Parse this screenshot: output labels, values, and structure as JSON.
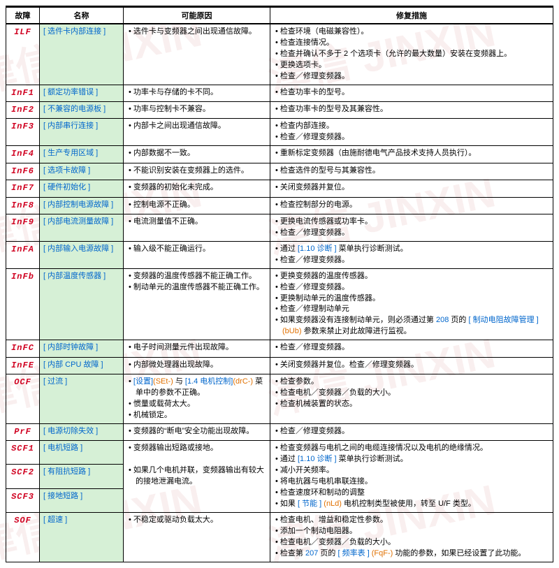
{
  "headers": {
    "code": "故障",
    "name": "名称",
    "cause": "可能原因",
    "remedy": "修复措施"
  },
  "rows": [
    {
      "code": "ILF",
      "name": "[ 选件卡内部连接 ]",
      "cause": [
        "选件卡与变频器之间出现通信故障。"
      ],
      "remedy": [
        "检查环境（电磁兼容性）。",
        "检查连接情况。",
        "检查并确认不多于 2 个选项卡（允许的最大数量）安装在变频器上。",
        "更换选项卡。",
        "检查／修理变频器。"
      ]
    },
    {
      "code": "InF1",
      "name": "[ 额定功率错误 ]",
      "cause": [
        "功率卡与存储的卡不同。"
      ],
      "remedy": [
        "检查功率卡的型号。"
      ]
    },
    {
      "code": "InF2",
      "name": "[ 不兼容的电源板 ]",
      "cause": [
        "功率与控制卡不兼容。"
      ],
      "remedy": [
        "检查功率卡的型号及其兼容性。"
      ]
    },
    {
      "code": "InF3",
      "name": "[ 内部串行连接 ]",
      "cause": [
        "内部卡之间出现通信故障。"
      ],
      "remedy": [
        "检查内部连接。",
        "检查／修理变频器。"
      ]
    },
    {
      "code": "InF4",
      "name": "[ 生产专用区域 ]",
      "cause": [
        "内部数据不一致。"
      ],
      "remedy": [
        "重新标定变频器（由施耐德电气产品技术支持人员执行）。"
      ]
    },
    {
      "code": "InF6",
      "name": "[ 选项卡故障 ]",
      "cause": [
        "不能识别安装在变频器上的选件。"
      ],
      "remedy": [
        "检查选件的型号与其兼容性。"
      ]
    },
    {
      "code": "InF7",
      "name": "[ 硬件初始化 ]",
      "cause": [
        "变频器的初始化未完成。"
      ],
      "remedy": [
        "关闭变频器并复位。"
      ]
    },
    {
      "code": "InF8",
      "name": "[ 内部控制电源故障 ]",
      "cause": [
        "控制电源不正确。"
      ],
      "remedy": [
        "检查控制部分的电源。"
      ]
    },
    {
      "code": "InF9",
      "name": "[ 内部电流测量故障 ]",
      "cause": [
        "电流测量值不正确。"
      ],
      "remedy": [
        "更换电流传感器或功率卡。",
        "检查／修理变频器。"
      ]
    },
    {
      "code": "InFA",
      "name": "[ 内部输入电源故障 ]",
      "cause": [
        "输入级不能正确运行。"
      ],
      "remedy_html": "<ul><li>通过 <span class='blue'>[1.10 诊断 ]</span> 菜单执行诊断测试。</li><li>检查／修理变频器。</li></ul>"
    },
    {
      "code": "InFb",
      "name": "[ 内部温度传感器 ]",
      "cause": [
        "变频器的温度传感器不能正确工作。",
        "制动单元的温度传感器不能正确工作。"
      ],
      "remedy_html": "<ul><li>更换变频器的温度传感器。</li><li>检查／修理变频器。</li><li>更换制动单元的温度传感器。</li><li>检查／修理制动单元</li><li>如果变频器没有连接制动单元，则必须通过第 <span class='blue'>208</span> 页的 <span class='blue'>[ 制动电阻故障管理 ]</span> <span class='orange'>(bUb)</span> 参数来禁止对此故障进行监视。</li></ul>"
    },
    {
      "code": "InFC",
      "name": "[ 内部时钟故障 ]",
      "cause": [
        "电子时间测量元件出现故障。"
      ],
      "remedy": [
        "检查／修理变频器。"
      ]
    },
    {
      "code": "InFE",
      "name": "[ 内部 CPU 故障 ]",
      "cause": [
        "内部微处理器出现故障。"
      ],
      "remedy": [
        "关闭变频器并复位。检查／修理变频器。"
      ]
    },
    {
      "code": "OCF",
      "name": "[ 过流 ]",
      "cause_html": "<ul><li><span class='blue'>[设置]</span><span class='orange'>(SEt-)</span> 与 <span class='blue'>[1.4 电机控制]</span><span class='orange'>(drC-)</span> 菜单中的参数不正确。</li><li>惯量或载荷太大。</li><li>机械锁定。</li></ul>",
      "remedy": [
        "检查参数。",
        "检查电机／变频器／负载的大小。",
        "检查机械装置的状态。"
      ]
    },
    {
      "code": "PrF",
      "name": "[ 电源切除失效 ]",
      "cause": [
        "变频器的“断电”安全功能出现故障。"
      ],
      "remedy": [
        "检查／修理变频器。"
      ]
    },
    {
      "code": "SCF1",
      "name": "[ 电机短路 ]",
      "cause_rowspan": 3,
      "remedy_rowspan": 3,
      "cause_html": "<ul><li>变频器输出短路或接地。</li></ul><br><ul><li>如果几个电机并联，变频器输出有较大的接地泄漏电流。</li></ul>",
      "remedy_html": "<ul><li>检查变频器与电机之间的电缆连接情况以及电机的绝缘情况。</li><li>通过 <span class='blue'>[1.10 诊断 ]</span> 菜单执行诊断测试。</li><li>减小开关频率。</li><li>将电抗器与电机串联连接。</li><li>检查速度环和制动的调整</li><li>如果 <span class='blue'>[ 节能 ]</span> <span class='orange'>(nLd)</span> 电机控制类型被使用，转至 U/F 类型。</li></ul>"
    },
    {
      "code": "SCF2",
      "name": "[ 有阻抗短路 ]"
    },
    {
      "code": "SCF3",
      "name": "[ 接地短路 ]"
    },
    {
      "code": "SOF",
      "name": "[ 超速 ]",
      "cause": [
        "不稳定或驱动负载太大。"
      ],
      "remedy_html": "<ul><li>检查电机、增益和稳定性参数。</li><li>添加一个制动电阻器。</li><li>检查电机／变频器／负载的大小。</li><li>检查第 <span class='blue'>207</span> 页的 <span class='blue'>[ 频率表 ]</span> <span class='orange'>(FqF-)</span> 功能的参数，如果已经设置了此功能。</li></ul>"
    }
  ]
}
